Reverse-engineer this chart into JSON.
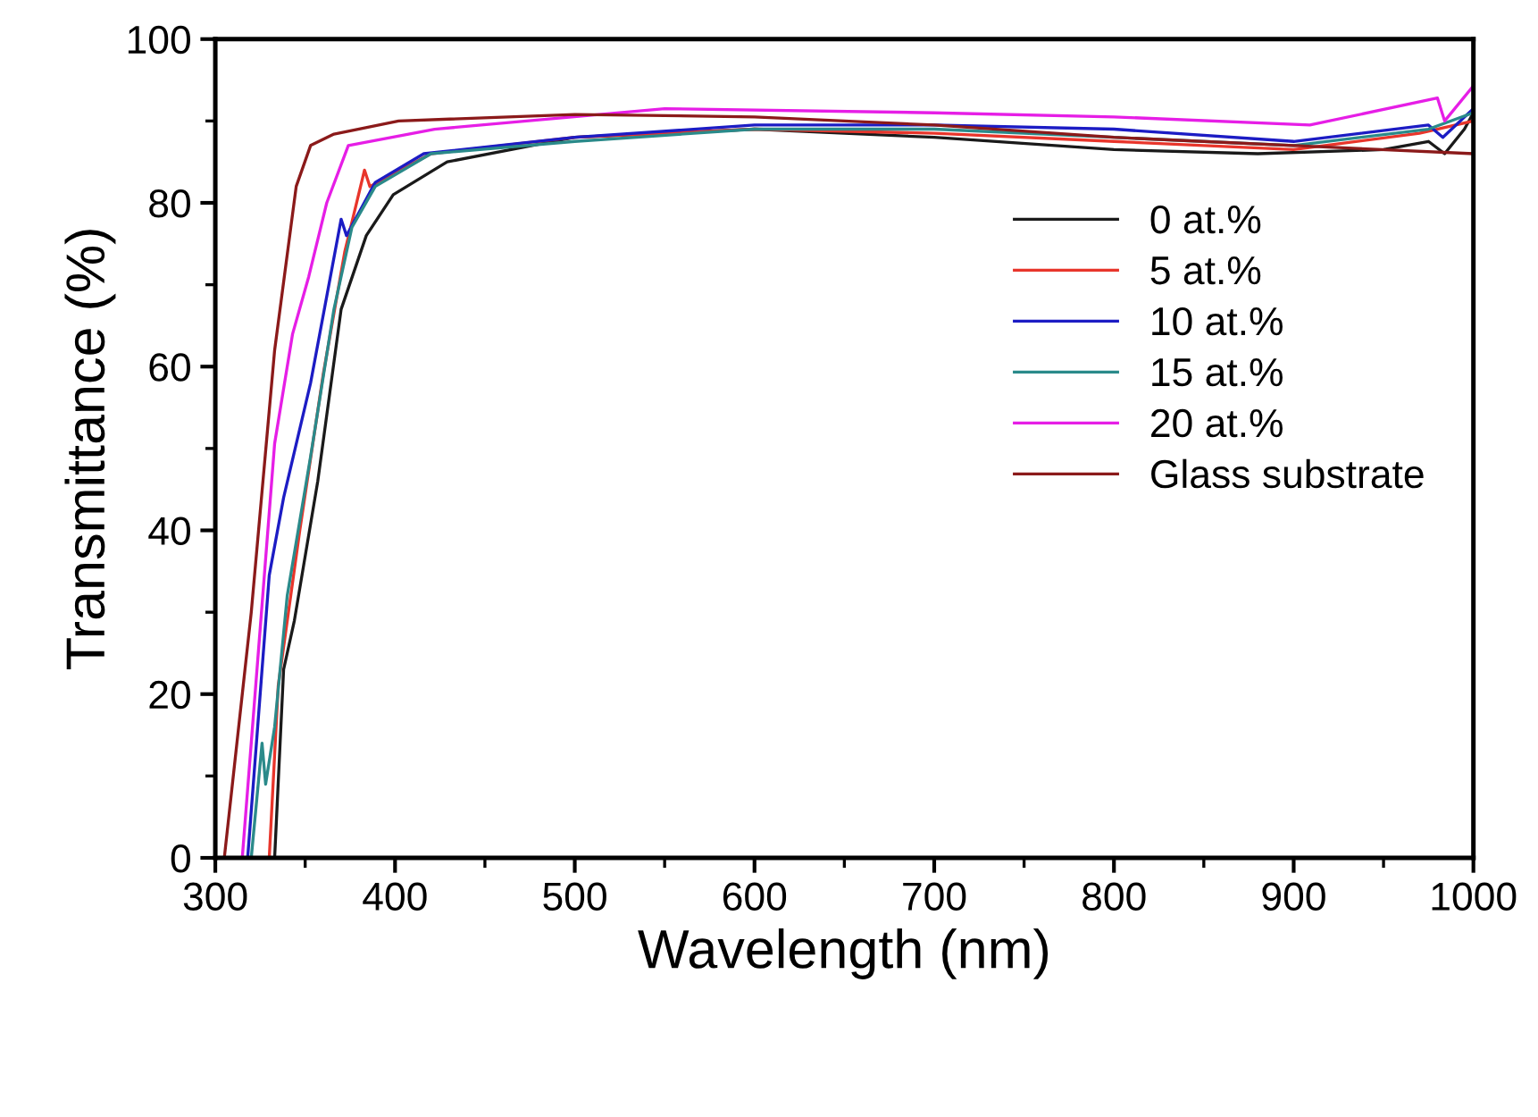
{
  "chart_data": {
    "type": "line",
    "xlabel": "Wavelength (nm)",
    "ylabel": "Transmittance (%)",
    "xlim": [
      300,
      1000
    ],
    "ylim": [
      0,
      100
    ],
    "xticks": [
      300,
      400,
      500,
      600,
      700,
      800,
      900,
      1000
    ],
    "yticks": [
      0,
      20,
      40,
      60,
      80,
      100
    ],
    "grid": false,
    "legend": "right",
    "marker": "none",
    "line_style": "solid",
    "series": [
      {
        "name": "0 at.%",
        "color": "#1a1a1a",
        "x": [
          333,
          338,
          344,
          357,
          370,
          384,
          399,
          429,
          500,
          600,
          700,
          800,
          880,
          950,
          975,
          984,
          995,
          1000
        ],
        "values": [
          0,
          23,
          29,
          46,
          67,
          76,
          81,
          85,
          88,
          89,
          88,
          86.5,
          86,
          86.5,
          87.5,
          86,
          89,
          91
        ]
      },
      {
        "name": "5 at.%",
        "color": "#e8352b",
        "x": [
          330,
          335,
          347,
          360,
          372,
          383,
          386,
          420,
          500,
          600,
          700,
          800,
          900,
          970,
          1000
        ],
        "values": [
          0,
          21,
          40,
          59,
          74,
          84,
          82,
          86,
          88,
          89,
          88.5,
          87.5,
          86.5,
          88.5,
          90
        ]
      },
      {
        "name": "10 at.%",
        "color": "#1c1cc4",
        "x": [
          318,
          330,
          338,
          353,
          370,
          373,
          389,
          416,
          500,
          600,
          700,
          800,
          900,
          975,
          983,
          1000
        ],
        "values": [
          0,
          34.5,
          44,
          58,
          78,
          76,
          82.5,
          86,
          88,
          89.5,
          89.5,
          89,
          87.5,
          89.5,
          88,
          91.5
        ]
      },
      {
        "name": "15 at.%",
        "color": "#2a8a8a",
        "x": [
          320,
          326,
          328,
          333,
          340,
          353,
          366,
          376,
          389,
          420,
          500,
          600,
          700,
          800,
          900,
          975,
          1000
        ],
        "values": [
          0,
          14,
          9,
          16,
          32,
          49,
          67,
          77,
          82,
          86,
          87.5,
          89,
          89,
          88,
          87,
          89,
          91
        ]
      },
      {
        "name": "20 at.%",
        "color": "#e61ee6",
        "x": [
          315,
          333,
          343,
          352,
          362,
          374,
          422,
          550,
          700,
          800,
          909,
          980,
          984,
          1000
        ],
        "values": [
          0,
          50.6,
          64,
          71,
          80,
          87,
          89,
          91.5,
          91,
          90.5,
          89.5,
          92.8,
          90,
          94.3
        ]
      },
      {
        "name": "Glass substrate",
        "color": "#8b1a1a",
        "x": [
          305,
          320,
          333,
          345,
          353,
          366,
          402,
          500,
          600,
          700,
          800,
          900,
          1000
        ],
        "values": [
          0,
          30,
          62,
          82,
          87,
          88.4,
          90,
          90.8,
          90.5,
          89.5,
          88,
          87,
          86
        ]
      }
    ]
  }
}
